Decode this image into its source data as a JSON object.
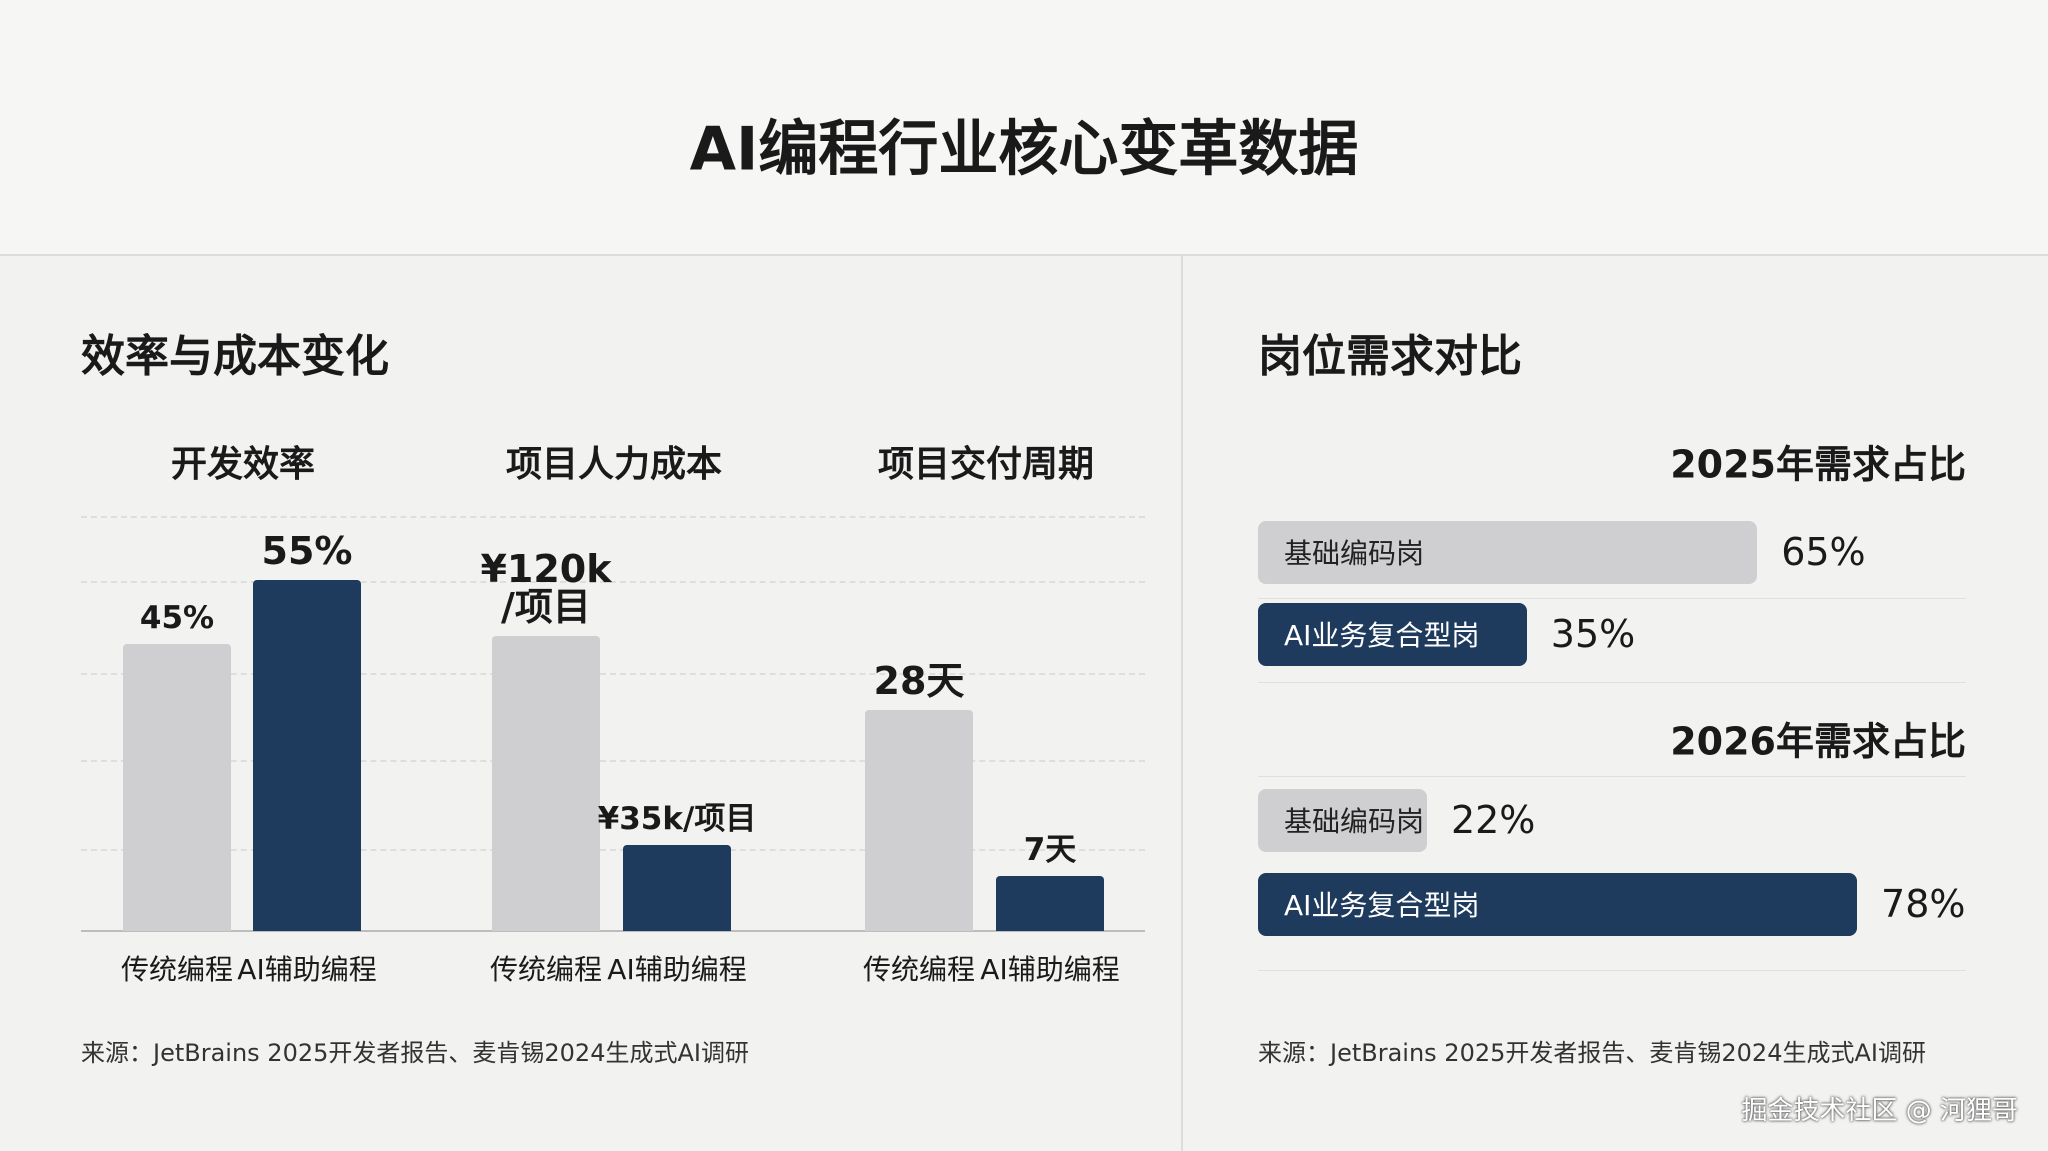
{
  "header": {
    "title": "AI编程行业核心变革数据"
  },
  "left": {
    "title": "效率与成本变化",
    "source": "来源：JetBrains 2025开发者报告、麦肯锡2024生成式AI调研"
  },
  "right": {
    "title": "岗位需求对比",
    "source": "来源：JetBrains 2025开发者报告、麦肯锡2024生成式AI调研"
  },
  "watermark": "掘金技术社区 @ 河狸哥",
  "chart_data": [
    {
      "type": "bar",
      "title": "开发效率",
      "categories": [
        "传统编程",
        "AI辅助编程"
      ],
      "values": [
        45,
        55
      ],
      "value_labels": [
        "45%",
        "55%"
      ],
      "colors": [
        "#cfcfd1",
        "#1e3a5c"
      ]
    },
    {
      "type": "bar",
      "title": "项目人力成本",
      "categories": [
        "传统编程",
        "AI辅助编程"
      ],
      "values": [
        120,
        35
      ],
      "value_labels": [
        "¥120k\n/项目",
        "¥35k/项目"
      ],
      "colors": [
        "#cfcfd1",
        "#1e3a5c"
      ]
    },
    {
      "type": "bar",
      "title": "项目交付周期",
      "categories": [
        "传统编程",
        "AI辅助编程"
      ],
      "values": [
        28,
        7
      ],
      "value_labels": [
        "28天",
        "7天"
      ],
      "colors": [
        "#cfcfd1",
        "#1e3a5c"
      ]
    },
    {
      "type": "hbar",
      "title": "2025年需求占比",
      "categories": [
        "基础编码岗",
        "AI业务复合型岗"
      ],
      "values": [
        65,
        35
      ],
      "value_labels": [
        "65%",
        "35%"
      ],
      "colors": [
        "#cfcfd1",
        "#1e3a5c"
      ]
    },
    {
      "type": "hbar",
      "title": "2026年需求占比",
      "categories": [
        "基础编码岗",
        "AI业务复合型岗"
      ],
      "values": [
        22,
        78
      ],
      "value_labels": [
        "22%",
        "78%"
      ],
      "colors": [
        "#cfcfd1",
        "#1e3a5c"
      ]
    }
  ]
}
